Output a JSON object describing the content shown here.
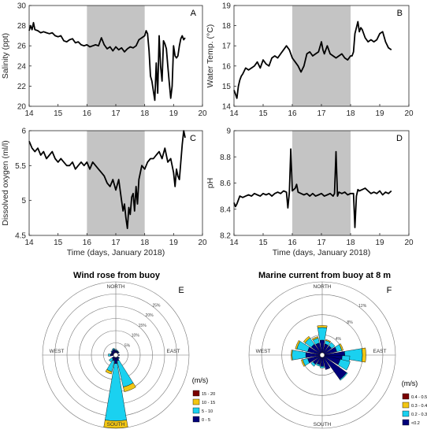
{
  "chart_data": [
    {
      "type": "line",
      "panel_letter": "A",
      "ylabel": "Salinity (ppt)",
      "xlabel": "",
      "xlim": [
        14,
        20
      ],
      "ylim": [
        20,
        30
      ],
      "xticks": [
        14,
        15,
        16,
        17,
        18,
        19,
        20
      ],
      "yticks": [
        20,
        22,
        24,
        26,
        28,
        30
      ],
      "shaded_x": [
        16,
        18
      ],
      "series": [
        {
          "x": [
            14.0,
            14.05,
            14.1,
            14.15,
            14.2,
            14.3,
            14.4,
            14.5,
            14.6,
            14.7,
            14.8,
            14.9,
            15.0,
            15.1,
            15.2,
            15.3,
            15.4,
            15.5,
            15.6,
            15.7,
            15.8,
            15.9,
            16.0,
            16.1,
            16.2,
            16.3,
            16.4,
            16.5,
            16.6,
            16.7,
            16.8,
            16.9,
            17.0,
            17.1,
            17.2,
            17.3,
            17.4,
            17.5,
            17.6,
            17.7,
            17.8,
            17.9,
            18.0,
            18.05,
            18.1,
            18.15,
            18.2,
            18.25,
            18.3,
            18.35,
            18.4,
            18.45,
            18.5,
            18.55,
            18.6,
            18.65,
            18.7,
            18.75,
            18.8,
            18.85,
            18.9,
            18.95,
            19.0,
            19.05,
            19.1,
            19.15,
            19.2,
            19.25,
            19.3,
            19.35,
            19.4
          ],
          "y": [
            27.5,
            28.0,
            27.6,
            28.3,
            27.6,
            27.5,
            27.3,
            27.4,
            27.3,
            27.2,
            27.3,
            27.0,
            26.9,
            27.0,
            26.5,
            26.4,
            26.6,
            26.7,
            26.3,
            26.4,
            26.1,
            26.0,
            26.1,
            25.9,
            26.0,
            26.1,
            26.0,
            26.8,
            26.1,
            25.7,
            25.9,
            25.5,
            25.9,
            25.6,
            25.8,
            25.4,
            25.7,
            25.9,
            25.8,
            26.0,
            26.6,
            26.8,
            27.0,
            27.5,
            27.2,
            25.5,
            23.0,
            22.5,
            21.5,
            20.6,
            24.3,
            21.3,
            27.0,
            24.0,
            22.5,
            26.5,
            26.2,
            25.7,
            24.0,
            22.4,
            20.8,
            22.0,
            26.0,
            25.0,
            24.8,
            25.0,
            26.0,
            26.7,
            27.0,
            26.6,
            26.8
          ]
        }
      ]
    },
    {
      "type": "line",
      "panel_letter": "B",
      "ylabel": "Water Temp. (°C)",
      "xlabel": "",
      "xlim": [
        14,
        20
      ],
      "ylim": [
        14,
        19
      ],
      "xticks": [
        14,
        15,
        16,
        17,
        18,
        19,
        20
      ],
      "yticks": [
        14,
        15,
        16,
        17,
        18,
        19
      ],
      "shaded_x": [
        16,
        18
      ],
      "series": [
        {
          "x": [
            14.0,
            14.05,
            14.1,
            14.15,
            14.2,
            14.25,
            14.3,
            14.4,
            14.5,
            14.6,
            14.7,
            14.8,
            14.9,
            15.0,
            15.1,
            15.2,
            15.3,
            15.4,
            15.5,
            15.6,
            15.7,
            15.8,
            15.9,
            16.0,
            16.1,
            16.2,
            16.3,
            16.4,
            16.5,
            16.6,
            16.7,
            16.8,
            16.9,
            17.0,
            17.05,
            17.1,
            17.15,
            17.2,
            17.3,
            17.4,
            17.5,
            17.6,
            17.7,
            17.8,
            17.9,
            18.0,
            18.05,
            18.1,
            18.15,
            18.2,
            18.25,
            18.3,
            18.35,
            18.4,
            18.5,
            18.6,
            18.7,
            18.8,
            18.9,
            19.0,
            19.1,
            19.2,
            19.3,
            19.4
          ],
          "y": [
            14.8,
            14.6,
            14.4,
            15.0,
            15.3,
            15.5,
            15.6,
            15.9,
            15.8,
            15.9,
            16.0,
            16.2,
            15.9,
            16.3,
            16.1,
            16.0,
            16.4,
            16.5,
            16.4,
            16.6,
            16.8,
            17.0,
            16.8,
            16.4,
            16.2,
            16.0,
            15.7,
            16.0,
            16.6,
            16.7,
            16.5,
            16.6,
            16.7,
            17.2,
            16.8,
            16.6,
            16.8,
            17.0,
            16.6,
            16.5,
            16.4,
            16.5,
            16.6,
            16.4,
            16.3,
            16.5,
            16.5,
            16.7,
            17.6,
            17.9,
            18.2,
            17.7,
            17.9,
            17.8,
            17.4,
            17.2,
            17.3,
            17.2,
            17.3,
            17.6,
            17.7,
            17.2,
            16.9,
            16.8
          ]
        }
      ]
    },
    {
      "type": "line",
      "panel_letter": "C",
      "ylabel": "Dissolved oxygen (ml/l)",
      "xlabel": "Time (days, January 2018)",
      "xlim": [
        14,
        20
      ],
      "ylim": [
        4.5,
        6
      ],
      "xticks": [
        14,
        15,
        16,
        17,
        18,
        19,
        20
      ],
      "yticks": [
        4.5,
        5,
        5.5,
        6
      ],
      "shaded_x": [
        16,
        18
      ],
      "series": [
        {
          "x": [
            14.0,
            14.1,
            14.2,
            14.3,
            14.4,
            14.5,
            14.6,
            14.7,
            14.8,
            14.9,
            15.0,
            15.1,
            15.2,
            15.3,
            15.4,
            15.5,
            15.6,
            15.7,
            15.8,
            15.9,
            16.0,
            16.1,
            16.2,
            16.3,
            16.4,
            16.5,
            16.6,
            16.7,
            16.8,
            16.9,
            17.0,
            17.1,
            17.2,
            17.25,
            17.3,
            17.35,
            17.4,
            17.45,
            17.5,
            17.55,
            17.6,
            17.65,
            17.7,
            17.75,
            17.8,
            17.9,
            18.0,
            18.1,
            18.2,
            18.3,
            18.4,
            18.5,
            18.6,
            18.7,
            18.8,
            18.9,
            19.0,
            19.05,
            19.1,
            19.15,
            19.2,
            19.3,
            19.35,
            19.4
          ],
          "y": [
            5.85,
            5.75,
            5.7,
            5.75,
            5.65,
            5.7,
            5.6,
            5.65,
            5.7,
            5.6,
            5.55,
            5.6,
            5.55,
            5.5,
            5.5,
            5.55,
            5.45,
            5.5,
            5.55,
            5.5,
            5.55,
            5.45,
            5.55,
            5.5,
            5.45,
            5.4,
            5.35,
            5.25,
            5.2,
            5.3,
            5.15,
            5.3,
            5.0,
            4.85,
            4.95,
            4.75,
            4.6,
            4.9,
            4.8,
            5.05,
            5.1,
            4.85,
            5.2,
            4.95,
            5.3,
            5.5,
            5.45,
            5.55,
            5.6,
            5.6,
            5.65,
            5.7,
            5.6,
            5.75,
            5.55,
            5.6,
            5.4,
            5.2,
            5.45,
            5.35,
            5.3,
            5.8,
            6.0,
            5.9
          ]
        }
      ]
    },
    {
      "type": "line",
      "panel_letter": "D",
      "ylabel": "pH",
      "xlabel": "Time (days, January 2018)",
      "xlim": [
        14,
        20
      ],
      "ylim": [
        8.2,
        9
      ],
      "xticks": [
        14,
        15,
        16,
        17,
        18,
        19,
        20
      ],
      "yticks": [
        8.2,
        8.4,
        8.6,
        8.8,
        9
      ],
      "shaded_x": [
        16,
        18
      ],
      "series": [
        {
          "x": [
            14.0,
            14.05,
            14.1,
            14.2,
            14.3,
            14.4,
            14.5,
            14.6,
            14.7,
            14.8,
            14.9,
            15.0,
            15.1,
            15.2,
            15.3,
            15.4,
            15.5,
            15.6,
            15.7,
            15.8,
            15.85,
            15.9,
            15.95,
            16.0,
            16.1,
            16.15,
            16.2,
            16.3,
            16.4,
            16.5,
            16.6,
            16.7,
            16.8,
            16.9,
            17.0,
            17.1,
            17.2,
            17.3,
            17.4,
            17.45,
            17.5,
            17.55,
            17.6,
            17.7,
            17.8,
            17.9,
            18.0,
            18.1,
            18.15,
            18.2,
            18.25,
            18.3,
            18.4,
            18.5,
            18.6,
            18.7,
            18.8,
            18.9,
            19.0,
            19.1,
            19.2,
            19.3,
            19.4
          ],
          "y": [
            8.45,
            8.42,
            8.44,
            8.5,
            8.49,
            8.5,
            8.51,
            8.5,
            8.52,
            8.51,
            8.5,
            8.52,
            8.51,
            8.52,
            8.5,
            8.52,
            8.53,
            8.52,
            8.54,
            8.53,
            8.41,
            8.53,
            8.86,
            8.54,
            8.56,
            8.59,
            8.53,
            8.52,
            8.51,
            8.52,
            8.5,
            8.52,
            8.5,
            8.51,
            8.52,
            8.5,
            8.51,
            8.52,
            8.5,
            8.52,
            8.84,
            8.5,
            8.53,
            8.52,
            8.53,
            8.51,
            8.52,
            8.52,
            8.26,
            8.5,
            8.55,
            8.54,
            8.55,
            8.56,
            8.54,
            8.52,
            8.53,
            8.52,
            8.54,
            8.51,
            8.53,
            8.52,
            8.54
          ]
        }
      ]
    },
    {
      "type": "wind_rose",
      "panel_letter": "E",
      "title": "Wind rose from buoy",
      "compass": [
        "NORTH",
        "EAST",
        "SOUTH",
        "WEST"
      ],
      "ring_labels": [
        "5%",
        "10%",
        "15%",
        "20%",
        "25%"
      ],
      "ring_values": [
        5,
        10,
        15,
        20,
        25
      ],
      "rmax": 30,
      "legend_title": "(m/s)",
      "bins": [
        {
          "label": "15 - 20",
          "color": "#7a0000"
        },
        {
          "label": "10 - 15",
          "color": "#f2c614"
        },
        {
          "label": "5 - 10",
          "color": "#1ad1f0"
        },
        {
          "label": "0 - 5",
          "color": "#00007a"
        }
      ],
      "petals": [
        {
          "dir": 0,
          "v": [
            1.0,
            0.4,
            0,
            0
          ]
        },
        {
          "dir": 22.5,
          "v": [
            0.8,
            0.2,
            0,
            0
          ]
        },
        {
          "dir": 45,
          "v": [
            0.6,
            0.2,
            0,
            0
          ]
        },
        {
          "dir": 90,
          "v": [
            0.5,
            0,
            0,
            0
          ]
        },
        {
          "dir": 135,
          "v": [
            0.7,
            0.3,
            0,
            0
          ]
        },
        {
          "dir": 157.5,
          "v": [
            1.5,
            11.0,
            2.0,
            0
          ]
        },
        {
          "dir": 180,
          "v": [
            2.5,
            23.5,
            3.0,
            0
          ]
        },
        {
          "dir": 202.5,
          "v": [
            1.5,
            4.5,
            1.0,
            0
          ]
        },
        {
          "dir": 225,
          "v": [
            1.0,
            1.5,
            0,
            0
          ]
        },
        {
          "dir": 270,
          "v": [
            1.3,
            0.8,
            0,
            0
          ]
        },
        {
          "dir": 292.5,
          "v": [
            0.9,
            0.2,
            0,
            0
          ]
        },
        {
          "dir": 315,
          "v": [
            1.2,
            0.3,
            0,
            0
          ]
        },
        {
          "dir": 337.5,
          "v": [
            1.5,
            0.4,
            0,
            0
          ]
        }
      ]
    },
    {
      "type": "wind_rose",
      "panel_letter": "F",
      "title": "Marine current from buoy at 8 m",
      "compass": [
        "NORTH",
        "EAST",
        "SOUTH",
        "WEST"
      ],
      "ring_labels": [
        "4%",
        "8%",
        "12%"
      ],
      "ring_values": [
        4,
        8,
        12
      ],
      "rmax": 14.5,
      "legend_title": "(m/s)",
      "bins": [
        {
          "label": "0.4 - 0.5",
          "color": "#7a0000"
        },
        {
          "label": "0.3 - 0.4",
          "color": "#f2c614"
        },
        {
          "label": "0.2 - 0.3",
          "color": "#1ad1f0"
        },
        {
          "label": "<0.2",
          "color": "#00007a"
        }
      ],
      "petals": [
        {
          "dir": 0,
          "v": [
            2.5,
            2.5,
            0.4,
            0
          ]
        },
        {
          "dir": 22.5,
          "v": [
            1.8,
            0.7,
            0.2,
            0
          ]
        },
        {
          "dir": 45,
          "v": [
            1.8,
            0.8,
            0,
            0
          ]
        },
        {
          "dir": 67.5,
          "v": [
            2.5,
            1.0,
            0.3,
            0
          ]
        },
        {
          "dir": 90,
          "v": [
            4.0,
            3.5,
            0.7,
            0
          ]
        },
        {
          "dir": 101.25,
          "v": [
            3.5,
            1.5,
            0,
            0
          ]
        },
        {
          "dir": 112.5,
          "v": [
            3.2,
            2.0,
            0,
            0
          ]
        },
        {
          "dir": 135,
          "v": [
            5.5,
            0.2,
            0,
            0
          ]
        },
        {
          "dir": 157.5,
          "v": [
            2.5,
            0,
            0,
            0
          ]
        },
        {
          "dir": 180,
          "v": [
            1.8,
            0.3,
            0,
            0
          ]
        },
        {
          "dir": 202.5,
          "v": [
            1.5,
            0.3,
            0,
            0
          ]
        },
        {
          "dir": 225,
          "v": [
            1.8,
            0.5,
            0,
            0
          ]
        },
        {
          "dir": 247.5,
          "v": [
            2.5,
            1.0,
            0.3,
            0
          ]
        },
        {
          "dir": 270,
          "v": [
            2.8,
            2.7,
            0.2,
            0
          ]
        },
        {
          "dir": 292.5,
          "v": [
            2.5,
            2.2,
            0.3,
            0
          ]
        },
        {
          "dir": 315,
          "v": [
            2.2,
            1.5,
            0.4,
            0
          ]
        },
        {
          "dir": 337.5,
          "v": [
            2.0,
            1.0,
            0.3,
            0
          ]
        }
      ]
    }
  ]
}
